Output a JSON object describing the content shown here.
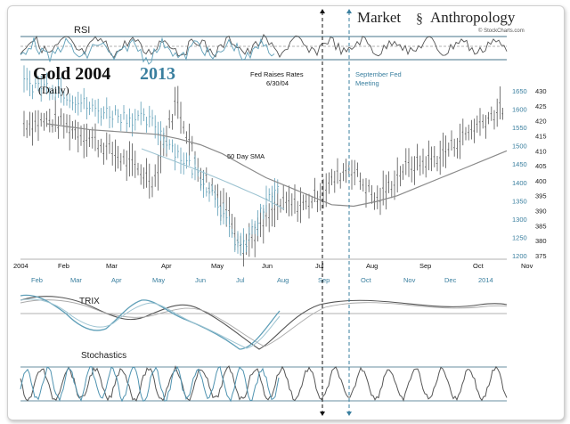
{
  "chart_data": {
    "type": "line",
    "title_main": "Gold 2004",
    "title_year2": "2013",
    "subtitle": "(Daily)",
    "brand_left": "Market",
    "brand_right": "Anthropology",
    "credit": "© StockCharts.com",
    "annotations": {
      "fed_raise_line1": "Fed Raises Rates",
      "fed_raise_line2": "6/30/04",
      "sept_fed_line1": "September Fed",
      "sept_fed_line2": "Meeting",
      "sma_label": "50 Day SMA"
    },
    "panels": {
      "rsi": "RSI",
      "trix": "TRIX",
      "stochastics": "Stochastics"
    },
    "x_2004_labels": [
      "2004",
      "Feb",
      "Mar",
      "Apr",
      "May",
      "Jun",
      "Jul",
      "Aug",
      "Sep",
      "Oct",
      "Nov"
    ],
    "x_2013_labels": [
      "Feb",
      "Mar",
      "Apr",
      "May",
      "Jun",
      "Jul",
      "Aug",
      "Sep",
      "Oct",
      "Nov",
      "Dec",
      "2014"
    ],
    "y_2004_axis": {
      "ticks": [
        430,
        425,
        420,
        415,
        410,
        405,
        400,
        395,
        390,
        385,
        380,
        375
      ],
      "range": [
        375,
        430
      ]
    },
    "y_2013_axis": {
      "ticks": [
        1650,
        1600,
        1550,
        1500,
        1450,
        1400,
        1350,
        1300,
        1250,
        1200
      ],
      "range": [
        1200,
        1650
      ]
    },
    "colors": {
      "gold2004": "#555555",
      "gold2013": "#5f9fb8",
      "sma": "#8a8a8a",
      "accent": "#3a7f9f"
    },
    "series": [
      {
        "name": "50 Day SMA",
        "x": [
          0,
          1,
          2,
          3,
          4,
          5,
          6,
          7,
          8,
          9,
          10,
          11,
          12,
          13,
          14,
          15,
          16,
          17,
          18,
          19,
          20,
          21
        ],
        "values": [
          419,
          418,
          417,
          416.5,
          416,
          415.5,
          414,
          412,
          409,
          405,
          401,
          398,
          395,
          392,
          391.5,
          393,
          395,
          398,
          401,
          404,
          407,
          410
        ]
      }
    ]
  }
}
